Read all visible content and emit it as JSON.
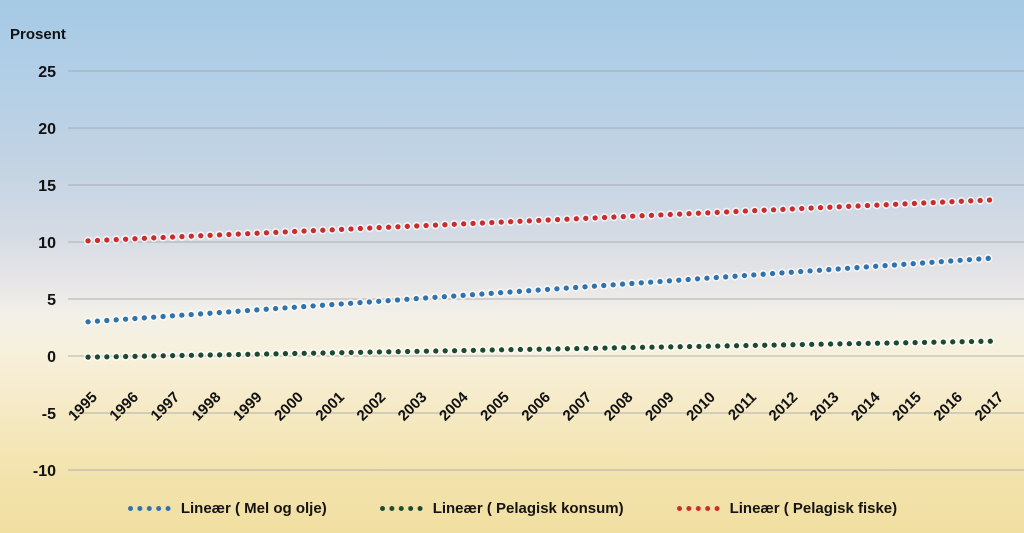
{
  "chart_data": {
    "type": "line",
    "style": "dotted-trendlines",
    "ylabel": "Prosent",
    "ylim": [
      -10,
      25
    ],
    "yticks": [
      25,
      20,
      15,
      10,
      5,
      0,
      -5,
      -10
    ],
    "grid": true,
    "legend_position": "bottom",
    "categories": [
      "1995",
      "1996",
      "1997",
      "1998",
      "1999",
      "2000",
      "2001",
      "2002",
      "2003",
      "2004",
      "2005",
      "2006",
      "2007",
      "2008",
      "2009",
      "2010",
      "2011",
      "2012",
      "2013",
      "2014",
      "2015",
      "2016",
      "2017"
    ],
    "series": [
      {
        "name": "Lineær ( Mel og olje)",
        "color": "#2e73ad",
        "values": [
          3.0,
          3.25,
          3.51,
          3.76,
          4.02,
          4.27,
          4.53,
          4.78,
          5.04,
          5.29,
          5.55,
          5.8,
          6.05,
          6.31,
          6.56,
          6.82,
          7.07,
          7.33,
          7.58,
          7.84,
          8.09,
          8.35,
          8.6
        ]
      },
      {
        "name": "Lineær ( Pelagisk konsum)",
        "color": "#1c4a31",
        "values": [
          -0.1,
          -0.04,
          0.03,
          0.09,
          0.15,
          0.22,
          0.28,
          0.35,
          0.41,
          0.47,
          0.54,
          0.6,
          0.66,
          0.73,
          0.79,
          0.85,
          0.92,
          0.98,
          1.05,
          1.11,
          1.17,
          1.24,
          1.3
        ]
      },
      {
        "name": "Lineær ( Pelagisk fiske)",
        "color": "#cb2b2b",
        "values": [
          10.1,
          10.26,
          10.43,
          10.59,
          10.75,
          10.92,
          11.08,
          11.25,
          11.41,
          11.57,
          11.74,
          11.9,
          12.06,
          12.23,
          12.39,
          12.55,
          12.72,
          12.88,
          13.05,
          13.21,
          13.37,
          13.54,
          13.7
        ]
      }
    ],
    "gridline_color": "#9fa3a7",
    "tick_label_color": "#111111"
  }
}
